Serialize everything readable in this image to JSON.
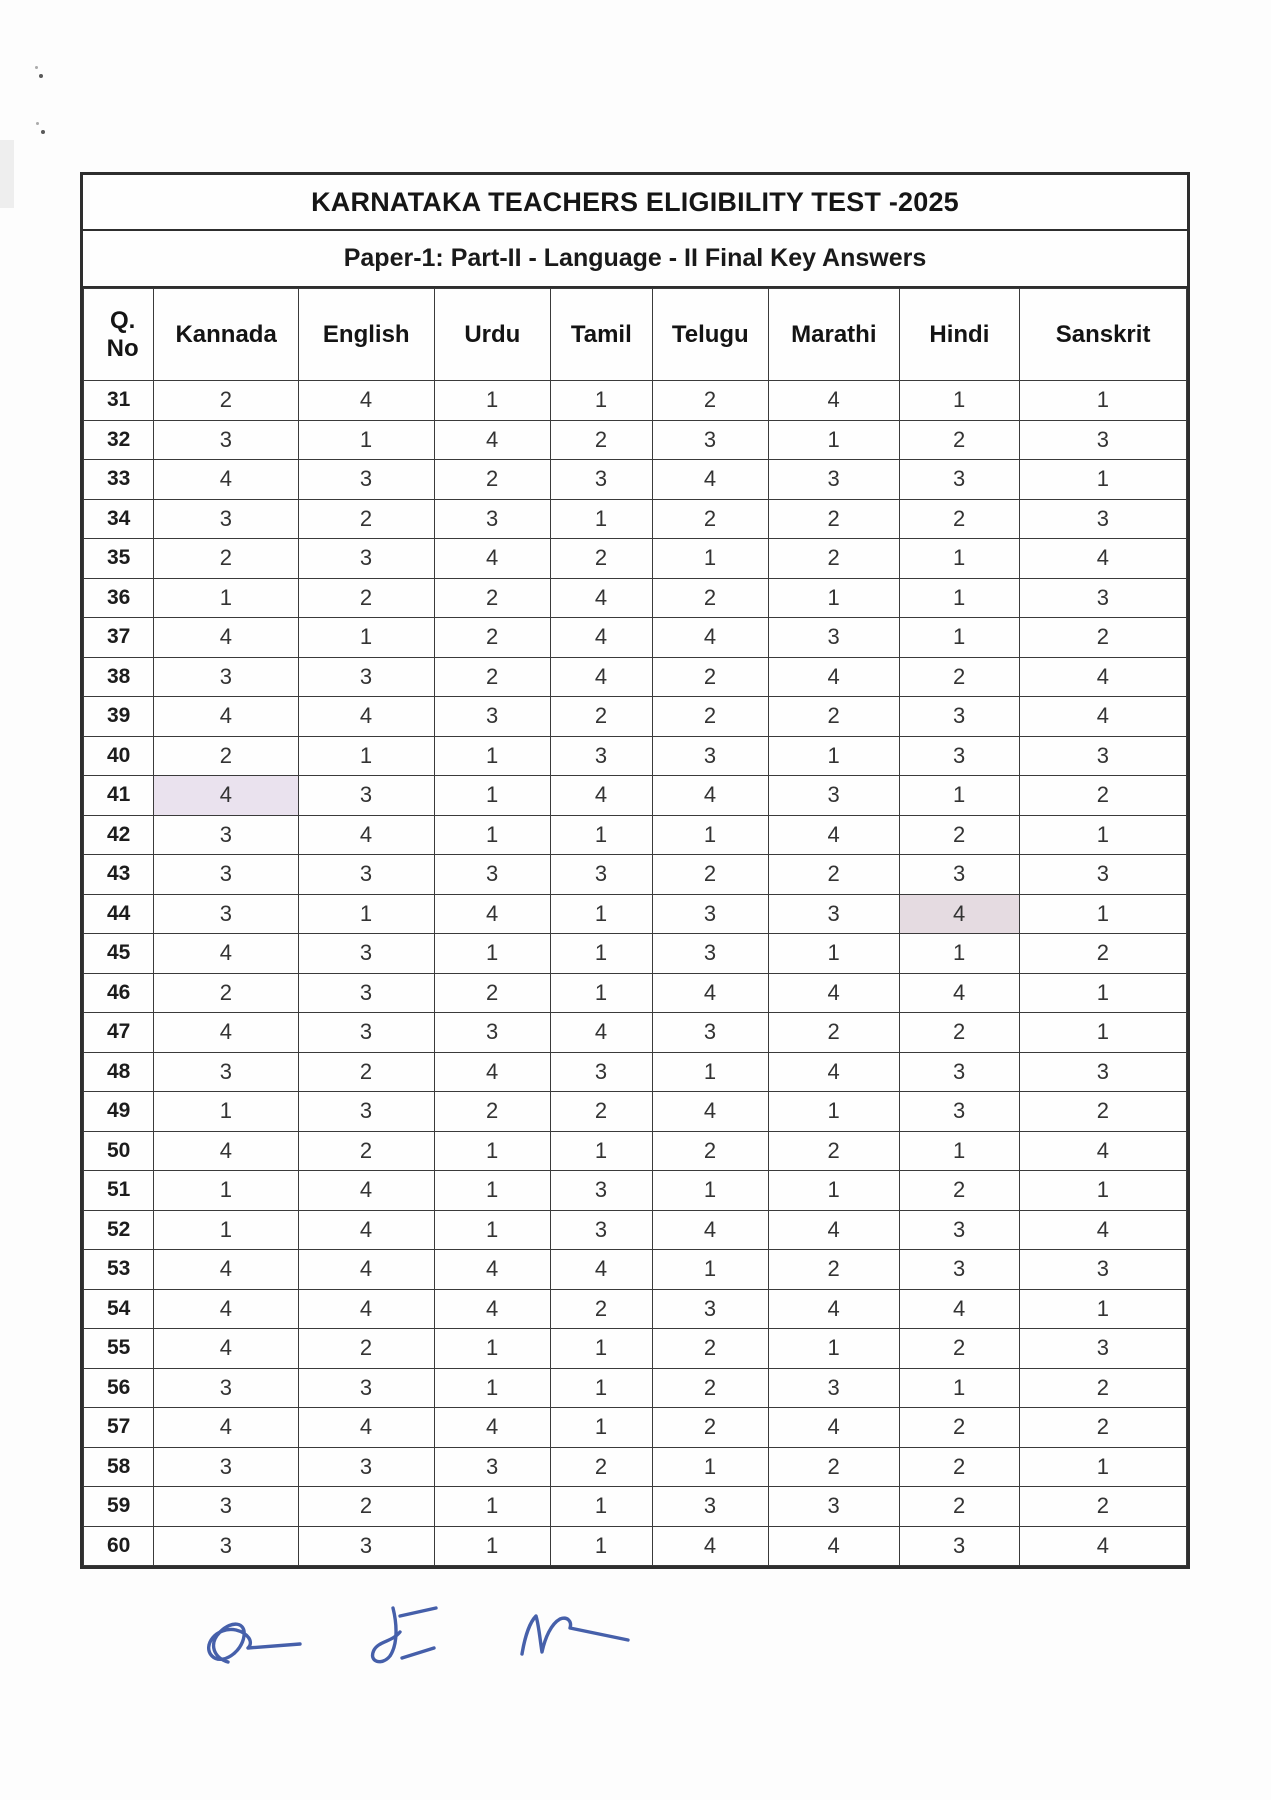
{
  "page": {
    "title": "KARNATAKA TEACHERS ELIGIBILITY TEST -2025",
    "subtitle": "Paper-1:  Part-II - Language - II Final Key Answers"
  },
  "table": {
    "q_header_line1": "Q.",
    "q_header_line2": "No",
    "columns": [
      "Kannada",
      "English",
      "Urdu",
      "Tamil",
      "Telugu",
      "Marathi",
      "Hindi",
      "Sanskrit"
    ],
    "rows": [
      {
        "q": "31",
        "answers": [
          "2",
          "4",
          "1",
          "1",
          "2",
          "4",
          "1",
          "1"
        ]
      },
      {
        "q": "32",
        "answers": [
          "3",
          "1",
          "4",
          "2",
          "3",
          "1",
          "2",
          "3"
        ]
      },
      {
        "q": "33",
        "answers": [
          "4",
          "3",
          "2",
          "3",
          "4",
          "3",
          "3",
          "1"
        ]
      },
      {
        "q": "34",
        "answers": [
          "3",
          "2",
          "3",
          "1",
          "2",
          "2",
          "2",
          "3"
        ]
      },
      {
        "q": "35",
        "answers": [
          "2",
          "3",
          "4",
          "2",
          "1",
          "2",
          "1",
          "4"
        ]
      },
      {
        "q": "36",
        "answers": [
          "1",
          "2",
          "2",
          "4",
          "2",
          "1",
          "1",
          "3"
        ]
      },
      {
        "q": "37",
        "answers": [
          "4",
          "1",
          "2",
          "4",
          "4",
          "3",
          "1",
          "2"
        ]
      },
      {
        "q": "38",
        "answers": [
          "3",
          "3",
          "2",
          "4",
          "2",
          "4",
          "2",
          "4"
        ]
      },
      {
        "q": "39",
        "answers": [
          "4",
          "4",
          "3",
          "2",
          "2",
          "2",
          "3",
          "4"
        ]
      },
      {
        "q": "40",
        "answers": [
          "2",
          "1",
          "1",
          "3",
          "3",
          "1",
          "3",
          "3"
        ]
      },
      {
        "q": "41",
        "answers": [
          "4",
          "3",
          "1",
          "4",
          "4",
          "3",
          "1",
          "2"
        ]
      },
      {
        "q": "42",
        "answers": [
          "3",
          "4",
          "1",
          "1",
          "1",
          "4",
          "2",
          "1"
        ]
      },
      {
        "q": "43",
        "answers": [
          "3",
          "3",
          "3",
          "3",
          "2",
          "2",
          "3",
          "3"
        ]
      },
      {
        "q": "44",
        "answers": [
          "3",
          "1",
          "4",
          "1",
          "3",
          "3",
          "4",
          "1"
        ]
      },
      {
        "q": "45",
        "answers": [
          "4",
          "3",
          "1",
          "1",
          "3",
          "1",
          "1",
          "2"
        ]
      },
      {
        "q": "46",
        "answers": [
          "2",
          "3",
          "2",
          "1",
          "4",
          "4",
          "4",
          "1"
        ]
      },
      {
        "q": "47",
        "answers": [
          "4",
          "3",
          "3",
          "4",
          "3",
          "2",
          "2",
          "1"
        ]
      },
      {
        "q": "48",
        "answers": [
          "3",
          "2",
          "4",
          "3",
          "1",
          "4",
          "3",
          "3"
        ]
      },
      {
        "q": "49",
        "answers": [
          "1",
          "3",
          "2",
          "2",
          "4",
          "1",
          "3",
          "2"
        ]
      },
      {
        "q": "50",
        "answers": [
          "4",
          "2",
          "1",
          "1",
          "2",
          "2",
          "1",
          "4"
        ]
      },
      {
        "q": "51",
        "answers": [
          "1",
          "4",
          "1",
          "3",
          "1",
          "1",
          "2",
          "1"
        ]
      },
      {
        "q": "52",
        "answers": [
          "1",
          "4",
          "1",
          "3",
          "4",
          "4",
          "3",
          "4"
        ]
      },
      {
        "q": "53",
        "answers": [
          "4",
          "4",
          "4",
          "4",
          "1",
          "2",
          "3",
          "3"
        ]
      },
      {
        "q": "54",
        "answers": [
          "4",
          "4",
          "4",
          "2",
          "3",
          "4",
          "4",
          "1"
        ]
      },
      {
        "q": "55",
        "answers": [
          "4",
          "2",
          "1",
          "1",
          "2",
          "1",
          "2",
          "3"
        ]
      },
      {
        "q": "56",
        "answers": [
          "3",
          "3",
          "1",
          "1",
          "2",
          "3",
          "1",
          "2"
        ]
      },
      {
        "q": "57",
        "answers": [
          "4",
          "4",
          "4",
          "1",
          "2",
          "4",
          "2",
          "2"
        ]
      },
      {
        "q": "58",
        "answers": [
          "3",
          "3",
          "3",
          "2",
          "1",
          "2",
          "2",
          "1"
        ]
      },
      {
        "q": "59",
        "answers": [
          "3",
          "2",
          "1",
          "1",
          "3",
          "3",
          "2",
          "2"
        ]
      },
      {
        "q": "60",
        "answers": [
          "3",
          "3",
          "1",
          "1",
          "4",
          "4",
          "3",
          "4"
        ]
      }
    ],
    "highlights": [
      {
        "q": "41",
        "col": "Kannada",
        "color": "#eae2ee"
      },
      {
        "q": "44",
        "col": "Hindi",
        "color": "#e5dbe1"
      }
    ]
  },
  "colors": {
    "border": "#2e2e2e",
    "ink": "#1f1f1f",
    "signature_ink": "#3652a3"
  },
  "signatures": {
    "count": 3,
    "description": "three handwritten blue-ink signatures"
  }
}
